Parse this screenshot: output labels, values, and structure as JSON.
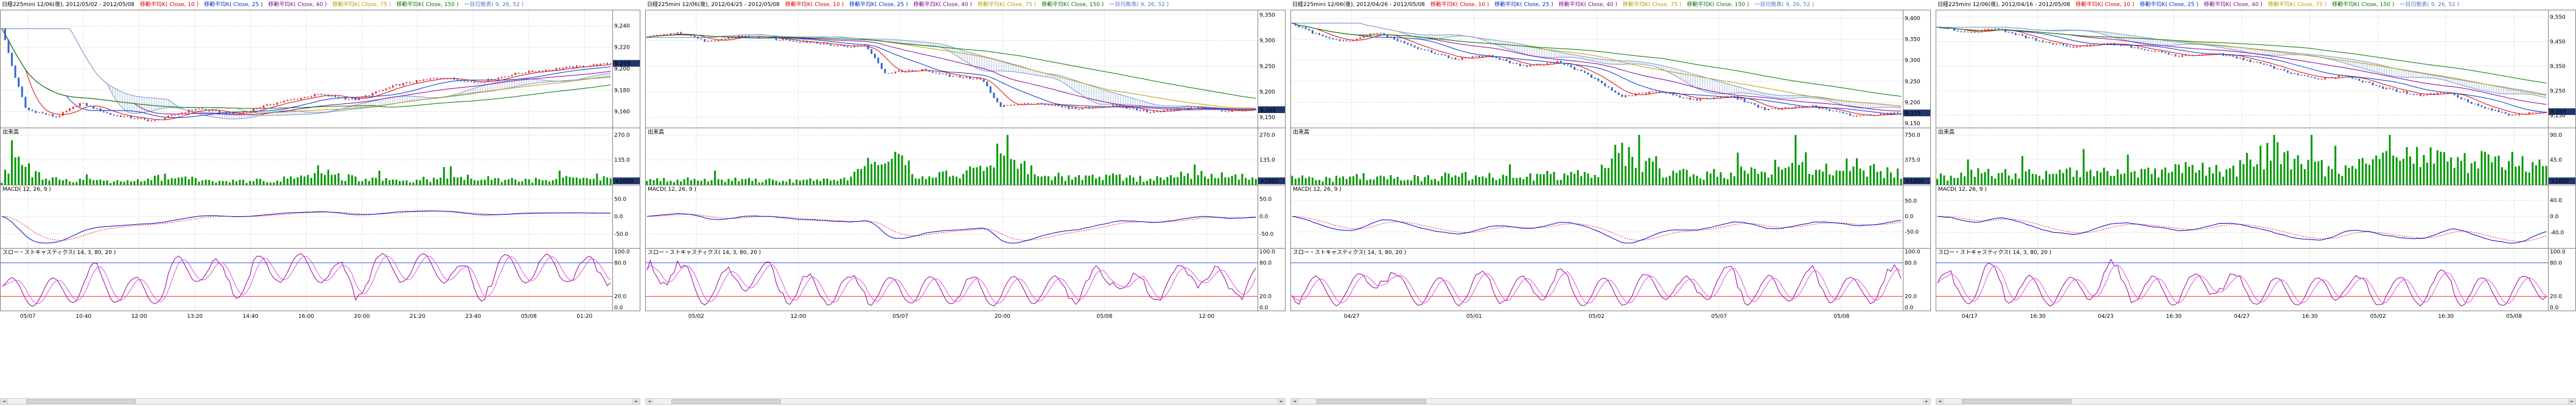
{
  "page": {
    "background": "#ffffff"
  },
  "colors": {
    "grid": "#c4c4c4",
    "border": "#808080",
    "candle_up": "#ee3333",
    "candle_down": "#3366cc",
    "volume_bar": "#009900",
    "cloud": "#9ab0dd",
    "cloud_edge": "#7c96c8",
    "macd_line": "#0000cc",
    "macd_signal": "#ee2222",
    "stoch_k": "#990099",
    "stoch_d": "#dd55dd",
    "stoch_upper": "#3355ff",
    "stoch_lower": "#ff3333",
    "last_price_bg": "#21366b",
    "last_price_text": "#ffffff"
  },
  "icons": {
    "scroll_left": "◄",
    "scroll_right": "►"
  },
  "chart_data": [
    {
      "type": "candlestick",
      "header_text": "日経225mini 12/06(夜), 2012/05/02 - 2012/05/08",
      "legends": [
        {
          "label": "移動平均K( Close, 10 )",
          "color": "#dd0000"
        },
        {
          "label": "移動平均K( Close, 25 )",
          "color": "#0033cc"
        },
        {
          "label": "移動平均K( Close, 40 )",
          "color": "#880099"
        },
        {
          "label": "移動平均K( Close, 75 )",
          "color": "#b8a000"
        },
        {
          "label": "移動平均K( Close, 150 )",
          "color": "#007700"
        },
        {
          "label": "一目均衡表( 9, 26, 52 )",
          "color": "#5577cc"
        }
      ],
      "x_labels": [
        "05/07",
        "10:40",
        "12:00",
        "13:20",
        "14:40",
        "16:00",
        "20:00",
        "21:20",
        "23:40",
        "05/08",
        "01:20"
      ],
      "panes": {
        "price": {
          "ylim": [
            9145,
            9255
          ],
          "yticks": [
            "9,240",
            "9,220",
            "9,200",
            "9,180",
            "9,160"
          ],
          "last_price": "9,205",
          "close_keypoints": [
            [
              0,
              9238
            ],
            [
              0.02,
              9196
            ],
            [
              0.04,
              9162
            ],
            [
              0.09,
              9155
            ],
            [
              0.13,
              9168
            ],
            [
              0.18,
              9157
            ],
            [
              0.25,
              9151
            ],
            [
              0.32,
              9163
            ],
            [
              0.38,
              9157
            ],
            [
              0.45,
              9168
            ],
            [
              0.52,
              9176
            ],
            [
              0.58,
              9171
            ],
            [
              0.65,
              9185
            ],
            [
              0.72,
              9192
            ],
            [
              0.78,
              9187
            ],
            [
              0.85,
              9196
            ],
            [
              0.93,
              9201
            ],
            [
              1,
              9205
            ]
          ]
        },
        "volume": {
          "label": "出来高",
          "unit": "×1000",
          "max": 270,
          "yticks": [
            "270.0",
            "135.0"
          ],
          "keypoints": [
            [
              0,
              25
            ],
            [
              0.02,
              265
            ],
            [
              0.05,
              90
            ],
            [
              0.1,
              45
            ],
            [
              0.16,
              30
            ],
            [
              0.22,
              28
            ],
            [
              0.27,
              65
            ],
            [
              0.33,
              38
            ],
            [
              0.4,
              28
            ],
            [
              0.46,
              45
            ],
            [
              0.52,
              95
            ],
            [
              0.58,
              55
            ],
            [
              0.64,
              35
            ],
            [
              0.7,
              42
            ],
            [
              0.76,
              62
            ],
            [
              0.82,
              45
            ],
            [
              0.88,
              35
            ],
            [
              0.93,
              55
            ],
            [
              1,
              45
            ]
          ]
        },
        "macd": {
          "label": "MACD( 12, 26, 9 )",
          "yticks": [
            "50.0",
            "0.0",
            "-50.0"
          ],
          "max": 80
        },
        "stoch": {
          "label": "スロー・ストキャスティクス( 14, 3, 80, 20 )",
          "yticks": [
            "100.0",
            "80.0",
            "20.0",
            "0.0"
          ],
          "upper": 80,
          "lower": 20
        }
      }
    },
    {
      "type": "candlestick",
      "header_text": "日経225mini 12/06(夜), 2012/04/25 - 2012/05/08",
      "legends": [
        {
          "label": "移動平均K( Close, 10 )",
          "color": "#dd0000"
        },
        {
          "label": "移動平均K( Close, 25 )",
          "color": "#0033cc"
        },
        {
          "label": "移動平均K( Close, 40 )",
          "color": "#880099"
        },
        {
          "label": "移動平均K( Close, 75 )",
          "color": "#b8a000"
        },
        {
          "label": "移動平均K( Close, 150 )",
          "color": "#007700"
        },
        {
          "label": "一目均衡表( 9, 26, 52 )",
          "color": "#5577cc"
        }
      ],
      "x_labels": [
        "05/02",
        "12:00",
        "05/07",
        "20:00",
        "05/08",
        "12:00"
      ],
      "panes": {
        "price": {
          "ylim": [
            9130,
            9360
          ],
          "yticks": [
            "9,350",
            "9,300",
            "9,250",
            "9,200",
            "9,150"
          ],
          "last_price": "9,165",
          "close_keypoints": [
            [
              0,
              9306
            ],
            [
              0.05,
              9315
            ],
            [
              0.1,
              9298
            ],
            [
              0.16,
              9310
            ],
            [
              0.22,
              9302
            ],
            [
              0.28,
              9295
            ],
            [
              0.33,
              9288
            ],
            [
              0.36,
              9290
            ],
            [
              0.39,
              9237
            ],
            [
              0.45,
              9243
            ],
            [
              0.5,
              9230
            ],
            [
              0.55,
              9224
            ],
            [
              0.58,
              9172
            ],
            [
              0.64,
              9178
            ],
            [
              0.7,
              9167
            ],
            [
              0.77,
              9173
            ],
            [
              0.83,
              9160
            ],
            [
              0.9,
              9170
            ],
            [
              0.95,
              9162
            ],
            [
              1,
              9165
            ]
          ]
        },
        "volume": {
          "label": "出来高",
          "unit": "×1000",
          "max": 270,
          "yticks": [
            "270.0",
            "135.0"
          ],
          "keypoints": [
            [
              0,
              35
            ],
            [
              0.08,
              45
            ],
            [
              0.16,
              38
            ],
            [
              0.24,
              32
            ],
            [
              0.32,
              40
            ],
            [
              0.37,
              130
            ],
            [
              0.39,
              260
            ],
            [
              0.45,
              70
            ],
            [
              0.5,
              85
            ],
            [
              0.55,
              110
            ],
            [
              0.58,
              255
            ],
            [
              0.64,
              95
            ],
            [
              0.7,
              55
            ],
            [
              0.77,
              65
            ],
            [
              0.83,
              45
            ],
            [
              0.9,
              85
            ],
            [
              1,
              55
            ]
          ]
        },
        "macd": {
          "label": "MACD( 12, 26, 9 )",
          "yticks": [
            "50.0",
            "0.0",
            "-50.0"
          ],
          "max": 80
        },
        "stoch": {
          "label": "スロー・ストキャスティクス( 14, 3, 80, 20 )",
          "yticks": [
            "100.0",
            "80.0",
            "20.0",
            "0.0"
          ],
          "upper": 80,
          "lower": 20
        }
      }
    },
    {
      "type": "candlestick",
      "header_text": "日経225mini 12/06(夜), 2012/04/26 - 2012/05/08",
      "legends": [
        {
          "label": "移動平均K( Close, 10 )",
          "color": "#dd0000"
        },
        {
          "label": "移動平均K( Close, 25 )",
          "color": "#0033cc"
        },
        {
          "label": "移動平均K( Close, 40 )",
          "color": "#880099"
        },
        {
          "label": "移動平均K( Close, 75 )",
          "color": "#b8a000"
        },
        {
          "label": "移動平均K( Close, 150 )",
          "color": "#007700"
        },
        {
          "label": "一目均衡表( 9, 26, 52 )",
          "color": "#5577cc"
        }
      ],
      "x_labels": [
        "04/27",
        "05/01",
        "05/02",
        "05/07",
        "05/08"
      ],
      "panes": {
        "price": {
          "ylim": [
            9140,
            9420
          ],
          "yticks": [
            "9,400",
            "9,350",
            "9,300",
            "9,250",
            "9,200",
            "9,150"
          ],
          "last_price": "9,175",
          "close_keypoints": [
            [
              0,
              9386
            ],
            [
              0.04,
              9362
            ],
            [
              0.09,
              9344
            ],
            [
              0.14,
              9366
            ],
            [
              0.2,
              9332
            ],
            [
              0.27,
              9302
            ],
            [
              0.32,
              9312
            ],
            [
              0.38,
              9286
            ],
            [
              0.44,
              9296
            ],
            [
              0.49,
              9262
            ],
            [
              0.54,
              9214
            ],
            [
              0.6,
              9226
            ],
            [
              0.66,
              9206
            ],
            [
              0.72,
              9216
            ],
            [
              0.78,
              9182
            ],
            [
              0.85,
              9192
            ],
            [
              0.92,
              9168
            ],
            [
              1,
              9175
            ]
          ]
        },
        "volume": {
          "label": "出来高",
          "unit": "×1000",
          "max": 750,
          "yticks": [
            "750.0",
            "375.0"
          ],
          "keypoints": [
            [
              0,
              160
            ],
            [
              0.06,
              130
            ],
            [
              0.12,
              190
            ],
            [
              0.2,
              150
            ],
            [
              0.28,
              210
            ],
            [
              0.36,
              170
            ],
            [
              0.44,
              240
            ],
            [
              0.5,
              280
            ],
            [
              0.54,
              720
            ],
            [
              0.6,
              320
            ],
            [
              0.66,
              220
            ],
            [
              0.72,
              260
            ],
            [
              0.78,
              310
            ],
            [
              0.83,
              620
            ],
            [
              0.88,
              360
            ],
            [
              0.93,
              420
            ],
            [
              1,
              260
            ]
          ]
        },
        "macd": {
          "label": "MACD( 12, 26, 9 )",
          "yticks": [
            "50.0",
            "0.0",
            "-50.0"
          ],
          "max": 90
        },
        "stoch": {
          "label": "スロー・ストキャスティクス( 14, 3, 80, 20 )",
          "yticks": [
            "100.0",
            "80.0",
            "20.0",
            "0.0"
          ],
          "upper": 80,
          "lower": 20
        }
      }
    },
    {
      "type": "candlestick",
      "header_text": "日経225mini 12/06(夜), 2012/04/16 - 2012/05/08",
      "legends": [
        {
          "label": "移動平均K( Close, 10 )",
          "color": "#dd0000"
        },
        {
          "label": "移動平均K( Close, 25 )",
          "color": "#0033cc"
        },
        {
          "label": "移動平均K( Close, 40 )",
          "color": "#880099"
        },
        {
          "label": "移動平均K( Close, 75 )",
          "color": "#b8a000"
        },
        {
          "label": "移動平均K( Close, 150 )",
          "color": "#007700"
        },
        {
          "label": "一目均衡表( 9, 26, 52 )",
          "color": "#5577cc"
        }
      ],
      "x_labels": [
        "04/17",
        "16:30",
        "04/23",
        "16:30",
        "04/27",
        "16:30",
        "05/02",
        "16:30",
        "05/08"
      ],
      "panes": {
        "price": {
          "ylim": [
            9100,
            9580
          ],
          "yticks": [
            "9,550",
            "9,450",
            "9,350",
            "9,250",
            "9,150"
          ],
          "last_price": "9,165",
          "close_keypoints": [
            [
              0,
              9512
            ],
            [
              0.05,
              9488
            ],
            [
              0.1,
              9502
            ],
            [
              0.16,
              9458
            ],
            [
              0.22,
              9428
            ],
            [
              0.28,
              9446
            ],
            [
              0.34,
              9418
            ],
            [
              0.4,
              9390
            ],
            [
              0.46,
              9402
            ],
            [
              0.52,
              9368
            ],
            [
              0.57,
              9330
            ],
            [
              0.62,
              9298
            ],
            [
              0.67,
              9312
            ],
            [
              0.73,
              9262
            ],
            [
              0.79,
              9232
            ],
            [
              0.84,
              9244
            ],
            [
              0.89,
              9186
            ],
            [
              0.94,
              9152
            ],
            [
              1,
              9165
            ]
          ]
        },
        "volume": {
          "label": "出来高",
          "unit": "×1000",
          "max": 90,
          "yticks": [
            "90.0",
            "45.0"
          ],
          "keypoints": [
            [
              0,
              22
            ],
            [
              0.08,
              32
            ],
            [
              0.16,
              26
            ],
            [
              0.24,
              36
            ],
            [
              0.32,
              30
            ],
            [
              0.4,
              42
            ],
            [
              0.48,
              38
            ],
            [
              0.55,
              88
            ],
            [
              0.6,
              48
            ],
            [
              0.68,
              52
            ],
            [
              0.74,
              62
            ],
            [
              0.8,
              82
            ],
            [
              0.86,
              58
            ],
            [
              0.92,
              72
            ],
            [
              1,
              45
            ]
          ]
        },
        "macd": {
          "label": "MACD( 12, 26, 9 )",
          "yticks": [
            "40.0",
            "0.0",
            "-40.0"
          ],
          "max": 70
        },
        "stoch": {
          "label": "スロー・ストキャスティクス( 14, 3, 80, 20 )",
          "yticks": [
            "100.0",
            "80.0",
            "20.0",
            "0.0"
          ],
          "upper": 80,
          "lower": 20
        }
      }
    }
  ]
}
